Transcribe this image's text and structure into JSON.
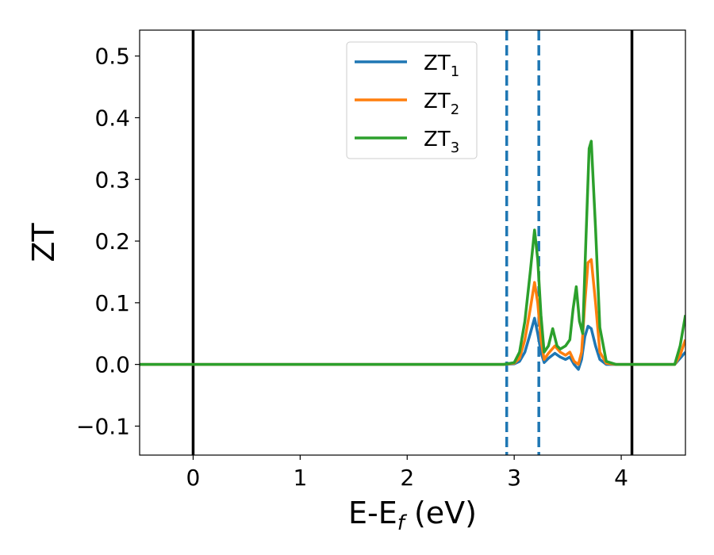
{
  "chart_data": {
    "type": "line",
    "xlabel": "E-E_f (eV)",
    "xlabel_parts": {
      "main": "E-E",
      "sub": "f",
      "rest": " (eV)"
    },
    "ylabel": "ZT",
    "xlim": [
      -0.5,
      4.6
    ],
    "ylim": [
      -0.147,
      0.542
    ],
    "xticks": [
      0,
      1,
      2,
      3,
      4
    ],
    "xtick_labels": [
      "0",
      "1",
      "2",
      "3",
      "4"
    ],
    "yticks": [
      -0.1,
      0.0,
      0.1,
      0.2,
      0.3,
      0.4,
      0.5
    ],
    "ytick_labels": [
      "−0.1",
      "0.0",
      "0.1",
      "0.2",
      "0.3",
      "0.4",
      "0.5"
    ],
    "grid": false,
    "legend_position": "top-center",
    "series": [
      {
        "name": "ZT_1",
        "label_main": "ZT",
        "label_sub": "1",
        "color": "#1f77b4",
        "x": [
          -0.5,
          2.9,
          3.0,
          3.05,
          3.1,
          3.15,
          3.19,
          3.22,
          3.25,
          3.28,
          3.32,
          3.38,
          3.43,
          3.48,
          3.52,
          3.56,
          3.6,
          3.63,
          3.66,
          3.69,
          3.72,
          3.76,
          3.8,
          3.86,
          3.95,
          4.5,
          4.55,
          4.6
        ],
        "y": [
          0.0,
          0.0,
          0.001,
          0.005,
          0.02,
          0.05,
          0.075,
          0.05,
          0.02,
          0.003,
          0.01,
          0.018,
          0.012,
          0.008,
          0.012,
          0.0,
          -0.008,
          0.008,
          0.045,
          0.062,
          0.058,
          0.03,
          0.008,
          0.0,
          0.0,
          0.0,
          0.01,
          0.02
        ]
      },
      {
        "name": "ZT_2",
        "label_main": "ZT",
        "label_sub": "2",
        "color": "#ff7f0e",
        "x": [
          -0.5,
          2.9,
          3.0,
          3.05,
          3.1,
          3.15,
          3.19,
          3.22,
          3.25,
          3.28,
          3.32,
          3.38,
          3.43,
          3.48,
          3.52,
          3.56,
          3.6,
          3.63,
          3.66,
          3.69,
          3.72,
          3.76,
          3.8,
          3.86,
          3.95,
          4.5,
          4.55,
          4.6
        ],
        "y": [
          0.0,
          0.0,
          0.002,
          0.01,
          0.04,
          0.09,
          0.133,
          0.1,
          0.04,
          0.008,
          0.018,
          0.03,
          0.02,
          0.015,
          0.02,
          0.005,
          0.0,
          0.02,
          0.1,
          0.165,
          0.17,
          0.1,
          0.02,
          0.002,
          0.0,
          0.0,
          0.015,
          0.04
        ]
      },
      {
        "name": "ZT_3",
        "label_main": "ZT",
        "label_sub": "3",
        "color": "#2ca02c",
        "x": [
          -0.5,
          2.9,
          3.0,
          3.05,
          3.1,
          3.15,
          3.19,
          3.22,
          3.25,
          3.28,
          3.32,
          3.36,
          3.4,
          3.43,
          3.48,
          3.52,
          3.55,
          3.58,
          3.61,
          3.64,
          3.67,
          3.7,
          3.72,
          3.76,
          3.8,
          3.86,
          3.95,
          4.5,
          4.55,
          4.6
        ],
        "y": [
          0.0,
          0.0,
          0.003,
          0.02,
          0.07,
          0.15,
          0.218,
          0.17,
          0.08,
          0.02,
          0.03,
          0.058,
          0.03,
          0.025,
          0.03,
          0.04,
          0.09,
          0.126,
          0.07,
          0.05,
          0.2,
          0.35,
          0.362,
          0.22,
          0.06,
          0.005,
          0.0,
          0.0,
          0.03,
          0.08
        ]
      }
    ],
    "vlines": [
      {
        "x": 0.0,
        "color": "#000000",
        "style": "solid"
      },
      {
        "x": 2.93,
        "color": "#1f77b4",
        "style": "dashed"
      },
      {
        "x": 3.23,
        "color": "#1f77b4",
        "style": "dashed"
      },
      {
        "x": 4.1,
        "color": "#000000",
        "style": "solid"
      }
    ]
  }
}
